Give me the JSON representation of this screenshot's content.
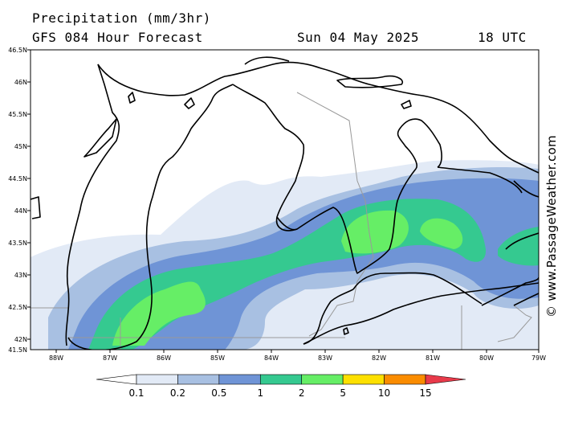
{
  "header": {
    "title": "Precipitation (mm/3hr)",
    "model": "GFS 084 Hour Forecast",
    "date": "Sun 04 May 2025",
    "time": "18 UTC"
  },
  "map": {
    "lat_labels": [
      "46.5N",
      "46N",
      "45.5N",
      "45N",
      "44.5N",
      "44N",
      "43.5N",
      "43N",
      "42.5N",
      "42N",
      "41.5N"
    ],
    "lon_labels": [
      "88W",
      "87W",
      "86W",
      "85W",
      "84W",
      "83W",
      "82W",
      "81W",
      "80W",
      "79W"
    ],
    "watermark": "© www.PassageWeather.com"
  },
  "colorbar": {
    "labels": [
      "0.1",
      "0.2",
      "0.5",
      "1",
      "2",
      "5",
      "10",
      "15"
    ],
    "colors": [
      "#ffffff",
      "#e2eaf6",
      "#a8c0e2",
      "#6f94d6",
      "#35c990",
      "#66ee66",
      "#fde000",
      "#fa8c00",
      "#e83a4a"
    ]
  }
}
